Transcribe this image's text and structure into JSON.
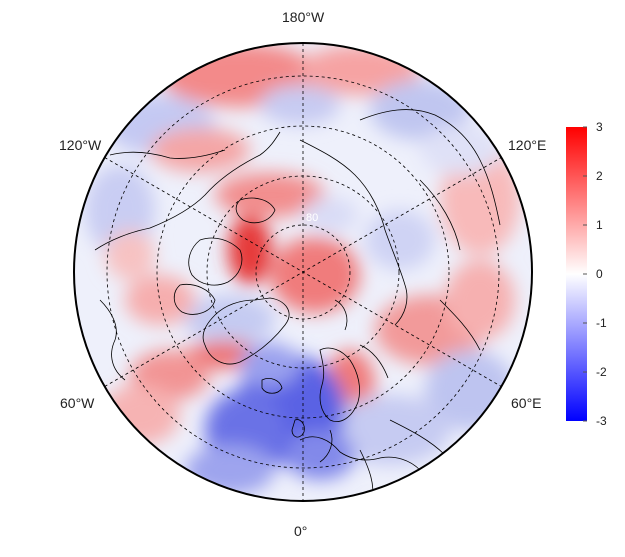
{
  "longitude_labels": {
    "top": "180°W",
    "bottom": "0°",
    "upper_left": "120°W",
    "upper_right": "120°E",
    "lower_left": "60°W",
    "lower_right": "60°E"
  },
  "latitude_label": "80",
  "colorbar": {
    "min": -3,
    "max": 3,
    "ticks": [
      "3",
      "2",
      "1",
      "0",
      "-1",
      "-2",
      "-3"
    ],
    "colors": {
      "high": "#ff0000",
      "mid": "#ffffff",
      "low": "#0000ff"
    }
  },
  "map": {
    "projection": "north-polar-stereographic",
    "center": "north-pole",
    "graticule": "dashed",
    "palette": [
      "#0000ff",
      "#ffffff",
      "#ff0000"
    ]
  }
}
